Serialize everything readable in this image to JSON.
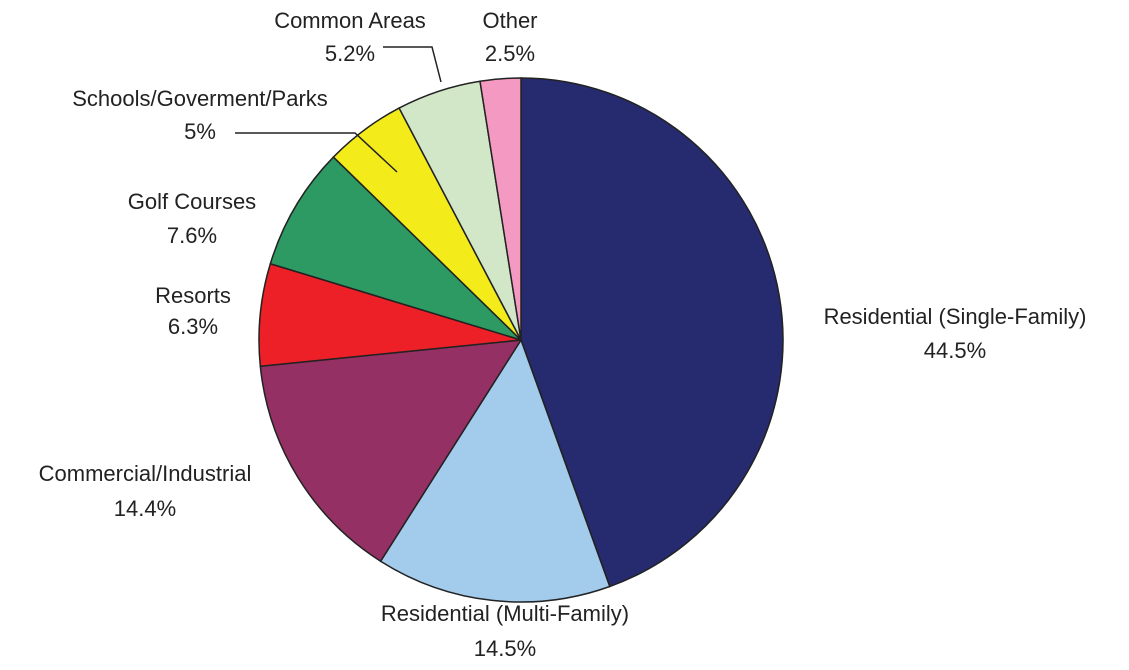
{
  "chart_data": {
    "type": "pie",
    "categories": [
      "Residential (Single-Family)",
      "Residential (Multi-Family)",
      "Commercial/Industrial",
      "Resorts",
      "Golf Courses",
      "Schools/Goverment/Parks",
      "Common Areas",
      "Other"
    ],
    "values": [
      44.5,
      14.5,
      14.4,
      6.3,
      7.6,
      5,
      5.2,
      2.5
    ],
    "value_labels": [
      "44.5%",
      "14.5%",
      "14.4%",
      "6.3%",
      "7.6%",
      "5%",
      "5.2%",
      "2.5%"
    ],
    "colors": [
      "#262a6e",
      "#a3cbeb",
      "#943063",
      "#ee2027",
      "#2e9a63",
      "#f3ec1a",
      "#d1e7c8",
      "#f49ac2"
    ]
  }
}
